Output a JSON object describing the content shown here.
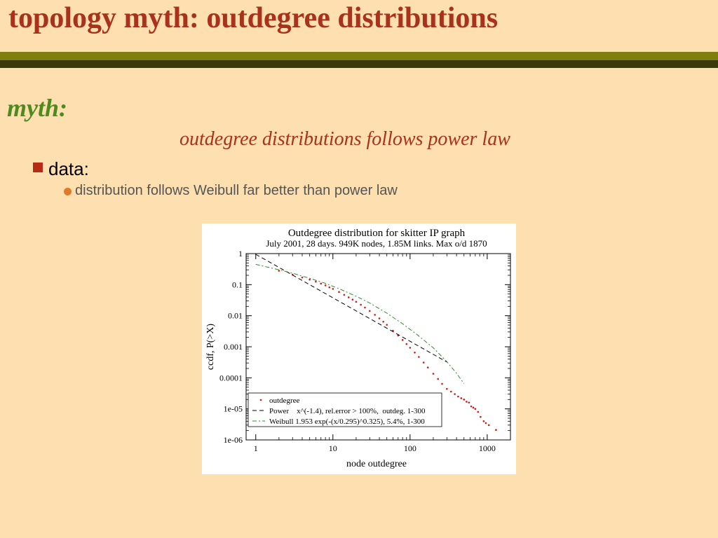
{
  "slide": {
    "title": "topology myth: outdegree distributions",
    "myth_label": "myth:",
    "claim": "outdegree distributions follows power law",
    "bullet_data": "data:",
    "bullet_sub": "distribution follows Weibull far better than power law"
  },
  "colors": {
    "background": "#fddfb0",
    "title": "#a8321b",
    "myth": "#4e8a1e",
    "band_olive": "#7f7f10",
    "band_dark": "#3a3a0a",
    "bullet_square": "#b52b16",
    "bullet_dot": "#e07a2a",
    "data_points": "#cc1a1a",
    "power_line": "#000000",
    "weibull_line": "#2e8b2e"
  },
  "chart_data": {
    "type": "scatter",
    "title": "Outdegree distribution for skitter IP graph",
    "subtitle": "July 2001, 28 days. 949K nodes, 1.85M links. Max o/d 1870",
    "xlabel": "node outdegree",
    "ylabel": "ccdf, P(>X)",
    "xscale": "log",
    "yscale": "log",
    "xlim": [
      0.75,
      2000
    ],
    "ylim": [
      1e-06,
      1
    ],
    "x_ticks": [
      1,
      10,
      100,
      1000
    ],
    "x_tick_labels": [
      "1",
      "10",
      "100",
      "1000"
    ],
    "y_ticks": [
      1,
      0.1,
      0.01,
      0.001,
      0.0001,
      1e-05,
      1e-06
    ],
    "y_tick_labels": [
      "1",
      "0.1",
      "0.01",
      "0.001",
      "0.0001",
      "1e-05",
      "1e-06"
    ],
    "legend_position": "bottom-left",
    "series": [
      {
        "name": "outdegree",
        "kind": "points",
        "color": "#cc1a1a",
        "x": [
          2,
          3,
          4,
          5,
          6,
          7,
          8,
          9,
          10,
          12,
          14,
          16,
          18,
          20,
          23,
          26,
          30,
          35,
          40,
          45,
          50,
          60,
          70,
          80,
          90,
          100,
          115,
          130,
          150,
          170,
          200,
          230,
          260,
          300,
          340,
          380,
          420,
          460,
          500,
          540,
          580,
          620,
          660,
          700,
          760,
          820,
          900,
          960,
          1050,
          1300
        ],
        "y": [
          0.28,
          0.21,
          0.17,
          0.145,
          0.125,
          0.108,
          0.095,
          0.082,
          0.073,
          0.058,
          0.047,
          0.039,
          0.033,
          0.028,
          0.0225,
          0.0183,
          0.0142,
          0.0107,
          0.0082,
          0.0064,
          0.0051,
          0.0033,
          0.0023,
          0.00165,
          0.00122,
          0.00093,
          0.00065,
          0.00047,
          0.00031,
          0.000215,
          0.000135,
          9.2e-05,
          6.4e-05,
          4.4e-05,
          3.6e-05,
          3e-05,
          2.5e-05,
          2.2e-05,
          2e-05,
          1.7e-05,
          1.6e-05,
          1.2e-05,
          1.1e-05,
          1e-05,
          8e-06,
          5.5e-06,
          4e-06,
          3.5e-06,
          3e-06,
          2.1e-06
        ]
      },
      {
        "name": "Power    x^(-1.4), rel.error > 100%,  outdeg. 1-300",
        "kind": "line",
        "dash": "6,4",
        "color": "#000000",
        "x": [
          1,
          300
        ],
        "y": [
          0.95,
          0.000323
        ]
      },
      {
        "name": "Weibull 1.953 exp(-(x/0.295)^0.325), 5.4%, 1-300",
        "kind": "line",
        "dash": "6,3,2,3",
        "color": "#2e8b2e",
        "x": [
          1,
          2,
          3,
          5,
          8,
          12,
          20,
          30,
          50,
          80,
          120,
          200,
          300,
          400,
          500
        ],
        "y": [
          0.45,
          0.302,
          0.233,
          0.16,
          0.11,
          0.074,
          0.0423,
          0.0255,
          0.0121,
          0.0055,
          0.0026,
          0.00092,
          0.00033,
          0.00014,
          6.5e-05
        ]
      }
    ]
  }
}
